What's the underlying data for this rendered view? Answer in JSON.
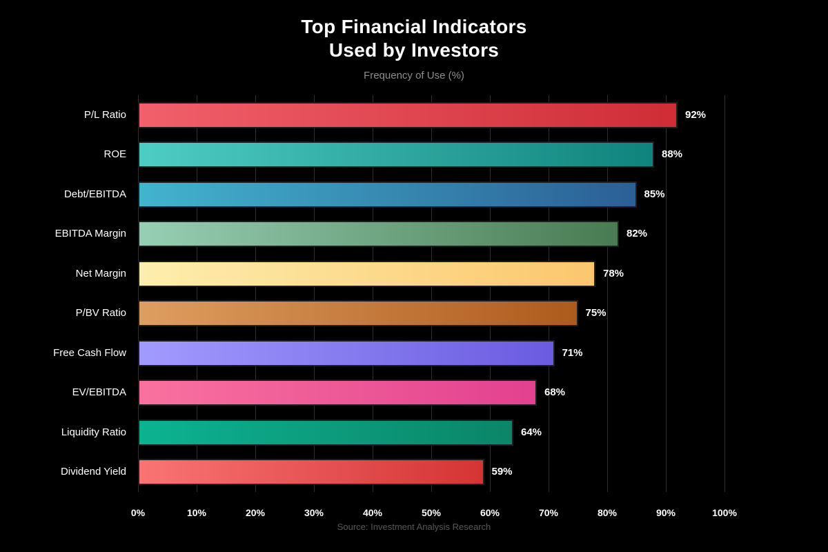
{
  "header": {
    "title_line1": "Top Financial Indicators",
    "title_line2": "Used by Investors",
    "subtitle": "Frequency of Use (%)"
  },
  "footer": {
    "source": "Source: Investment Analysis Research"
  },
  "chart_data": {
    "type": "bar",
    "orientation": "horizontal",
    "title": "Top Financial Indicators Used by Investors",
    "subtitle": "Frequency of Use (%)",
    "xlabel": "",
    "ylabel": "",
    "xlim": [
      0,
      100
    ],
    "grid": true,
    "legend": false,
    "background_color": "#000000",
    "grid_color": "#2e2e2e",
    "text_color": "#ffffff",
    "categories": [
      "P/L Ratio",
      "ROE",
      "Debt/EBITDA",
      "EBITDA Margin",
      "Net Margin",
      "P/BV Ratio",
      "Free Cash Flow",
      "EV/EBITDA",
      "Liquidity Ratio",
      "Dividend Yield"
    ],
    "values": [
      92,
      88,
      85,
      82,
      78,
      75,
      71,
      68,
      64,
      59
    ],
    "value_labels": [
      "92%",
      "88%",
      "85%",
      "82%",
      "78%",
      "75%",
      "71%",
      "68%",
      "64%",
      "59%"
    ],
    "bar_colors": [
      {
        "start": "#f1606b",
        "end": "#ce2d36"
      },
      {
        "start": "#4ecdc4",
        "end": "#0f837c"
      },
      {
        "start": "#43b3cf",
        "end": "#2b5f95"
      },
      {
        "start": "#97cfb4",
        "end": "#497b51"
      },
      {
        "start": "#fdeeae",
        "end": "#fbc76d"
      },
      {
        "start": "#dd9e5f",
        "end": "#ae5a1d"
      },
      {
        "start": "#a29bfe",
        "end": "#6a5be0"
      },
      {
        "start": "#f9729f",
        "end": "#e2418f"
      },
      {
        "start": "#0cb391",
        "end": "#0b8568"
      },
      {
        "start": "#fa7474",
        "end": "#d43434"
      }
    ],
    "xticks": [
      0,
      10,
      20,
      30,
      40,
      50,
      60,
      70,
      80,
      90,
      100
    ],
    "xtick_labels": [
      "0%",
      "10%",
      "20%",
      "30%",
      "40%",
      "50%",
      "60%",
      "70%",
      "80%",
      "90%",
      "100%"
    ]
  }
}
